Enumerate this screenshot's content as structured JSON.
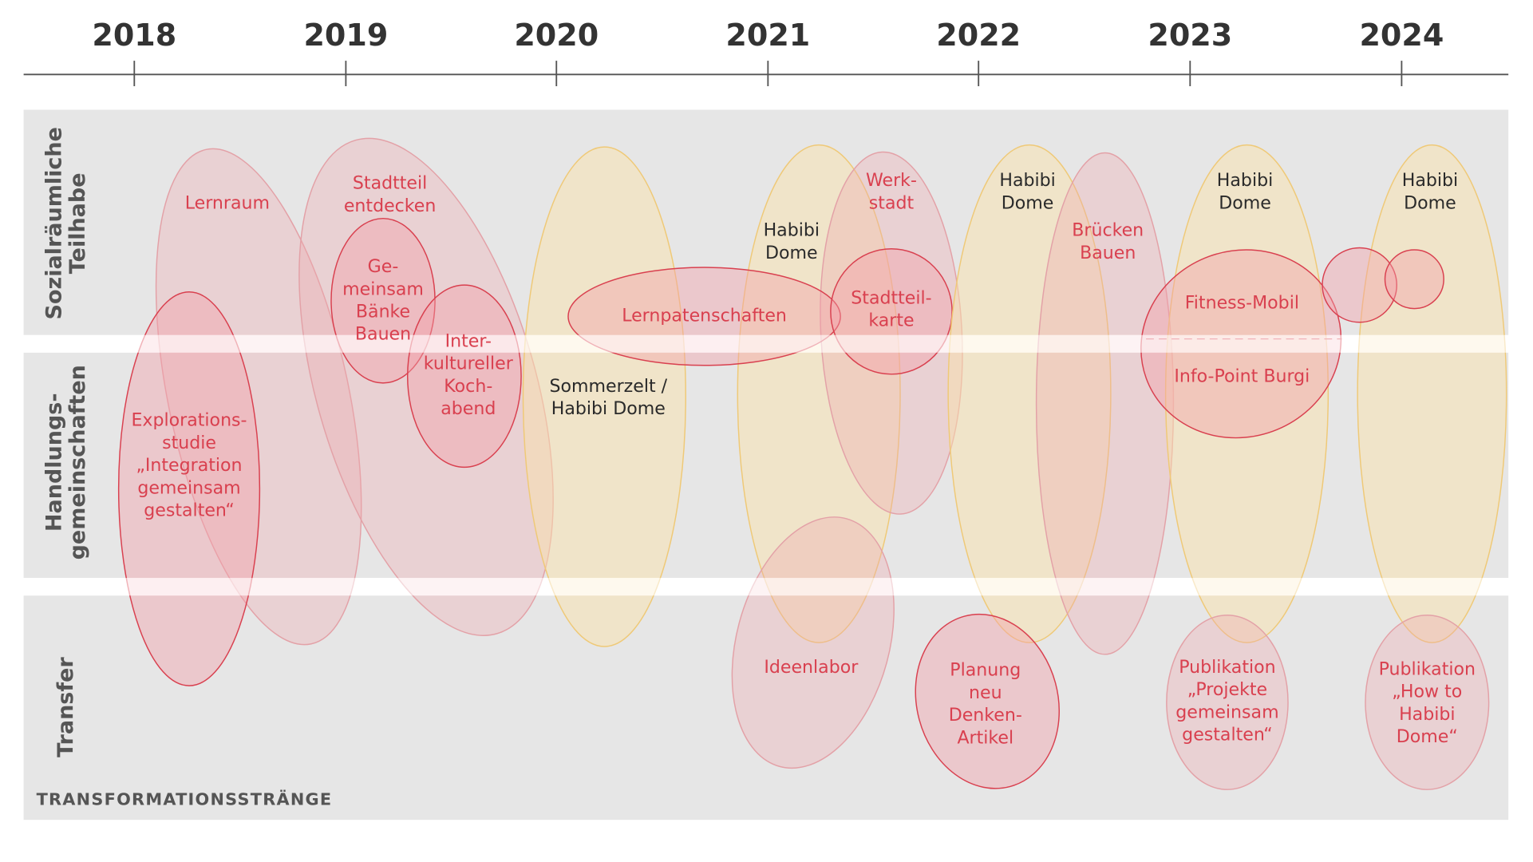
{
  "timeline": {
    "years": [
      "2018",
      "2019",
      "2020",
      "2021",
      "2022",
      "2023",
      "2024"
    ]
  },
  "lanes": [
    {
      "lines": [
        "Sozialräumliche",
        "Teilhabe"
      ]
    },
    {
      "lines": [
        "Handlungs-",
        "gemeinschaften"
      ]
    },
    {
      "lines": [
        "Transfer"
      ]
    }
  ],
  "footer": "TRANSFORMATIONSSTRÄNGE",
  "items": [
    {
      "lines": [
        "Lernraum"
      ]
    },
    {
      "lines": [
        "Explorations-",
        "studie",
        "„Integration",
        "gemeinsam",
        "gestalten“"
      ]
    },
    {
      "lines": [
        "Stadtteil",
        "entdecken"
      ]
    },
    {
      "lines": [
        "Ge-",
        "meinsam",
        "Bänke",
        "Bauen"
      ]
    },
    {
      "lines": [
        "Inter-",
        "kultureller",
        "Koch-",
        "abend"
      ]
    },
    {
      "lines": [
        "Sommerzelt /",
        "Habibi Dome"
      ]
    },
    {
      "lines": [
        "Lernpatenschaften"
      ]
    },
    {
      "lines": [
        "Habibi",
        "Dome"
      ]
    },
    {
      "lines": [
        "Werk-",
        "stadt"
      ]
    },
    {
      "lines": [
        "Stadtteil-",
        "karte"
      ]
    },
    {
      "lines": [
        "Ideenlabor"
      ]
    },
    {
      "lines": [
        "Habibi",
        "Dome"
      ]
    },
    {
      "lines": [
        "Brücken",
        "Bauen"
      ]
    },
    {
      "lines": [
        "Planung",
        "neu",
        "Denken-",
        "Artikel"
      ]
    },
    {
      "lines": [
        "Habibi",
        "Dome"
      ]
    },
    {
      "lines": [
        "Fitness-Mobil"
      ]
    },
    {
      "lines": [
        "Info-Point Burgi"
      ]
    },
    {
      "lines": [
        "Habibi",
        "Dome"
      ]
    },
    {
      "lines": [
        "Publikation",
        "„Projekte",
        "gemeinsam",
        "gestalten“"
      ]
    },
    {
      "lines": [
        "Publikation",
        "„How to",
        "Habibi",
        "Dome“"
      ]
    }
  ]
}
